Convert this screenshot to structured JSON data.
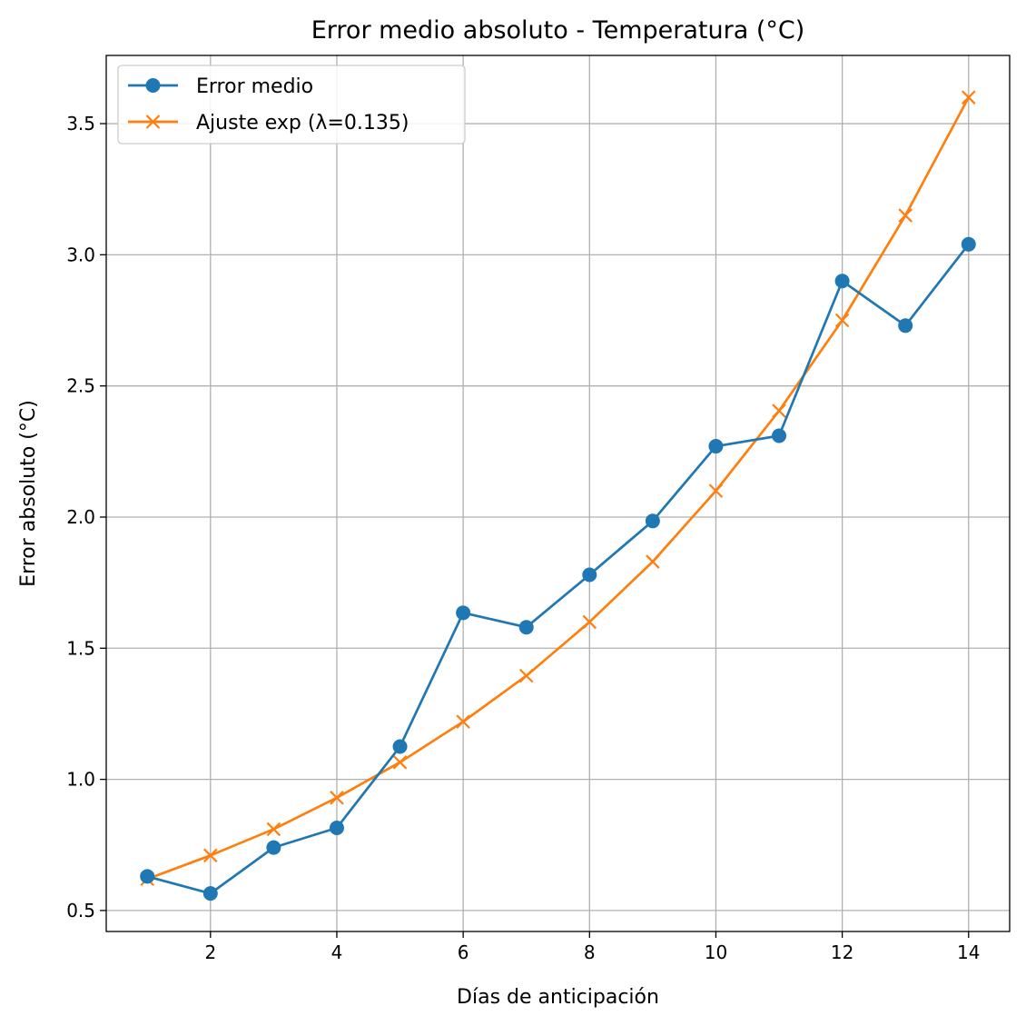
{
  "chart_data": {
    "type": "line",
    "title": "Error medio absoluto - Temperatura (°C)",
    "xlabel": "Días de anticipación",
    "ylabel": "Error absoluto (°C)",
    "x": [
      1,
      2,
      3,
      4,
      5,
      6,
      7,
      8,
      9,
      10,
      11,
      12,
      13,
      14
    ],
    "xlim": [
      0.35,
      14.65
    ],
    "ylim": [
      0.42,
      3.76
    ],
    "xticks": [
      2,
      4,
      6,
      8,
      10,
      12,
      14
    ],
    "yticks": [
      0.5,
      1.0,
      1.5,
      2.0,
      2.5,
      3.0,
      3.5
    ],
    "xtick_labels": [
      "2",
      "4",
      "6",
      "8",
      "10",
      "12",
      "14"
    ],
    "ytick_labels": [
      "0.5",
      "1.0",
      "1.5",
      "2.0",
      "2.5",
      "3.0",
      "3.5"
    ],
    "grid": true,
    "legend_position": "top-left",
    "series": [
      {
        "name": "Error medio",
        "marker": "circle",
        "color": "#1f77b4",
        "values": [
          0.63,
          0.565,
          0.74,
          0.815,
          1.125,
          1.635,
          1.58,
          1.78,
          1.985,
          2.27,
          2.31,
          2.9,
          2.73,
          3.04
        ]
      },
      {
        "name": "Ajuste exp (λ=0.135)",
        "marker": "x",
        "color": "#ff7f0e",
        "values": [
          0.62,
          0.71,
          0.81,
          0.93,
          1.065,
          1.22,
          1.395,
          1.6,
          1.83,
          2.1,
          2.405,
          2.75,
          3.15,
          3.6
        ]
      }
    ]
  }
}
